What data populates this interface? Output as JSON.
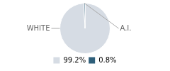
{
  "chart_data": {
    "type": "pie",
    "categories": [
      "WHITE",
      "A.I."
    ],
    "values": [
      99.2,
      0.8
    ],
    "value_labels": [
      "99.2%",
      "0.8%"
    ],
    "colors": [
      "#d6dce4",
      "#2e5f7a"
    ],
    "legend": "bottom"
  }
}
